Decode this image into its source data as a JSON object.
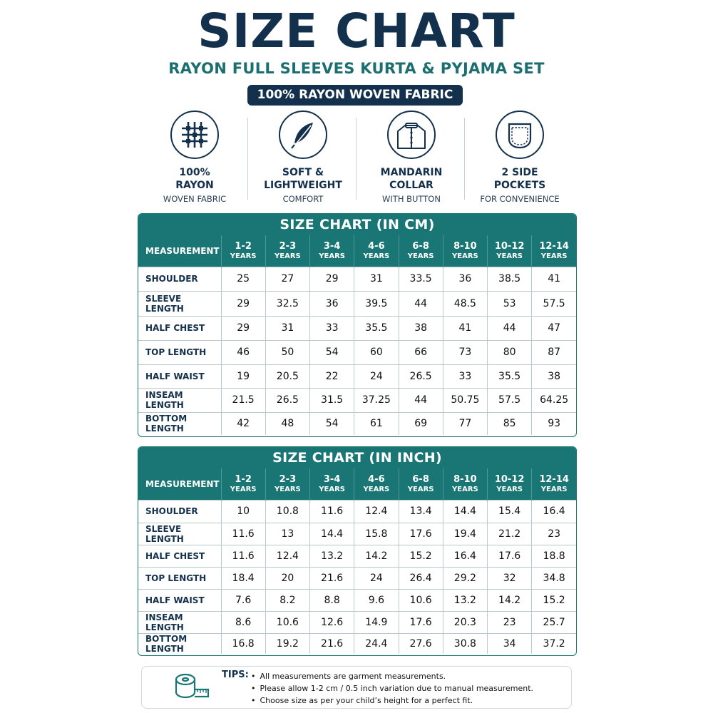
{
  "header": {
    "title": "SIZE CHART",
    "subtitle": "RAYON FULL SLEEVES KURTA & PYJAMA SET",
    "badge": "100% RAYON WOVEN FABRIC"
  },
  "features": [
    {
      "icon": "fabric-weave-icon",
      "line1": "100%",
      "line2": "RAYON",
      "line3": "WOVEN FABRIC"
    },
    {
      "icon": "feather-icon",
      "line1": "SOFT &",
      "line2": "LIGHTWEIGHT",
      "line3": "COMFORT"
    },
    {
      "icon": "mandarin-collar-icon",
      "line1": "MANDARIN",
      "line2": "COLLAR",
      "line3": "WITH BUTTON"
    },
    {
      "icon": "pocket-icon",
      "line1": "2 SIDE",
      "line2": "POCKETS",
      "line3": "FOR CONVENIENCE"
    }
  ],
  "cm_table": {
    "title": "SIZE CHART (IN CM)",
    "header_label": "MEASUREMENT",
    "year_label": "YEARS",
    "sizes": [
      "1-2",
      "2-3",
      "3-4",
      "4-6",
      "6-8",
      "8-10",
      "10-12",
      "12-14"
    ],
    "rows": [
      {
        "label": "SHOULDER",
        "values": [
          "25",
          "27",
          "29",
          "31",
          "33.5",
          "36",
          "38.5",
          "41"
        ]
      },
      {
        "label": "SLEEVE LENGTH",
        "values": [
          "29",
          "32.5",
          "36",
          "39.5",
          "44",
          "48.5",
          "53",
          "57.5"
        ]
      },
      {
        "label": "HALF CHEST",
        "values": [
          "29",
          "31",
          "33",
          "35.5",
          "38",
          "41",
          "44",
          "47"
        ]
      },
      {
        "label": "TOP LENGTH",
        "values": [
          "46",
          "50",
          "54",
          "60",
          "66",
          "73",
          "80",
          "87"
        ]
      },
      {
        "label": "HALF WAIST",
        "values": [
          "19",
          "20.5",
          "22",
          "24",
          "26.5",
          "33",
          "35.5",
          "38"
        ]
      },
      {
        "label": "INSEAM LENGTH",
        "values": [
          "21.5",
          "26.5",
          "31.5",
          "37.25",
          "44",
          "50.75",
          "57.5",
          "64.25"
        ]
      },
      {
        "label": "BOTTOM LENGTH",
        "values": [
          "42",
          "48",
          "54",
          "61",
          "69",
          "77",
          "85",
          "93"
        ]
      }
    ]
  },
  "inch_table": {
    "title": "SIZE CHART (IN INCH)",
    "header_label": "MEASUREMENT",
    "year_label": "YEARS",
    "sizes": [
      "1-2",
      "2-3",
      "3-4",
      "4-6",
      "6-8",
      "8-10",
      "10-12",
      "12-14"
    ],
    "rows": [
      {
        "label": "SHOULDER",
        "values": [
          "10",
          "10.8",
          "11.6",
          "12.4",
          "13.4",
          "14.4",
          "15.4",
          "16.4"
        ]
      },
      {
        "label": "SLEEVE LENGTH",
        "values": [
          "11.6",
          "13",
          "14.4",
          "15.8",
          "17.6",
          "19.4",
          "21.2",
          "23"
        ]
      },
      {
        "label": "HALF CHEST",
        "values": [
          "11.6",
          "12.4",
          "13.2",
          "14.2",
          "15.2",
          "16.4",
          "17.6",
          "18.8"
        ]
      },
      {
        "label": "TOP LENGTH",
        "values": [
          "18.4",
          "20",
          "21.6",
          "24",
          "26.4",
          "29.2",
          "32",
          "34.8"
        ]
      },
      {
        "label": "HALF WAIST",
        "values": [
          "7.6",
          "8.2",
          "8.8",
          "9.6",
          "10.6",
          "13.2",
          "14.2",
          "15.2"
        ]
      },
      {
        "label": "INSEAM LENGTH",
        "values": [
          "8.6",
          "10.6",
          "12.6",
          "14.9",
          "17.6",
          "20.3",
          "23",
          "25.7"
        ]
      },
      {
        "label": "BOTTOM LENGTH",
        "values": [
          "16.8",
          "19.2",
          "21.6",
          "24.4",
          "27.6",
          "30.8",
          "34",
          "37.2"
        ]
      }
    ]
  },
  "tips": {
    "label": "TIPS:",
    "items": [
      "All measurements are garment measurements.",
      "Please allow 1-2 cm / 0.5 inch variation due to manual measurement.",
      "Choose size as per your child’s height for a perfect fit."
    ]
  },
  "colors": {
    "navy": "#13304d",
    "teal": "#1a7575",
    "subtitle_teal": "#1c6f70"
  }
}
